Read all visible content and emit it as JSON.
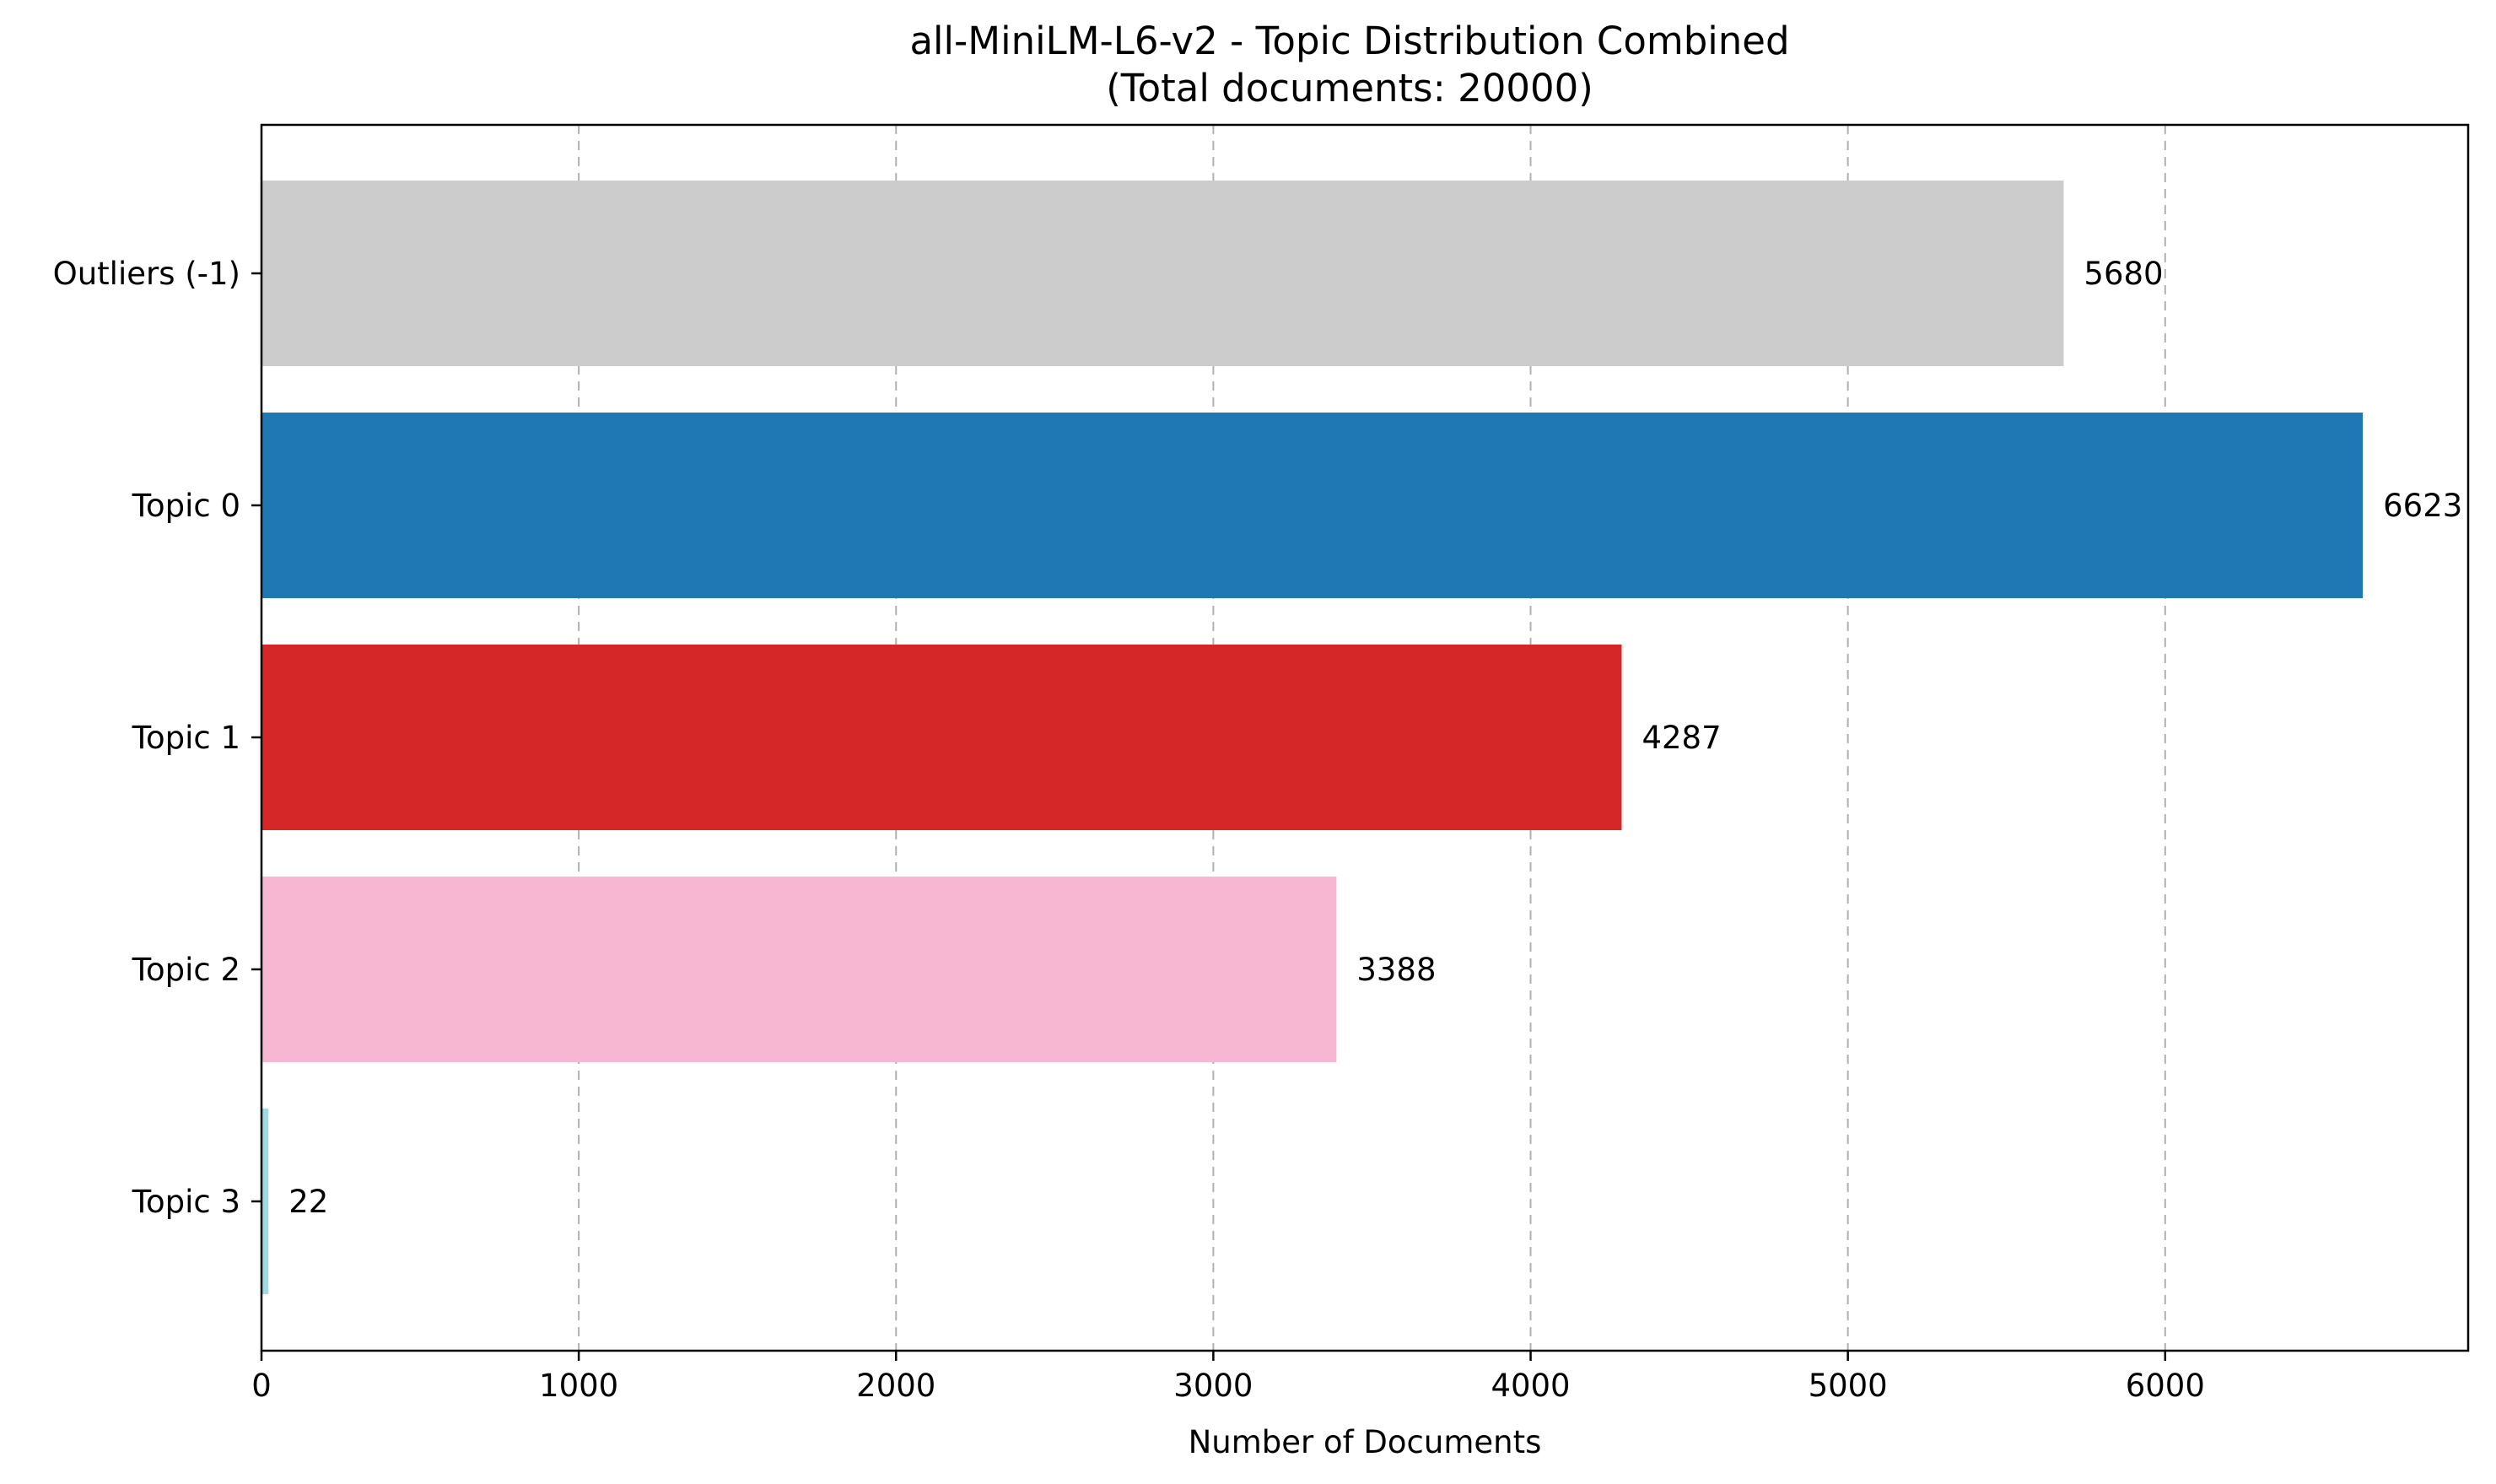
{
  "chart_data": {
    "type": "bar",
    "orientation": "horizontal",
    "title": "all-MiniLM-L6-v2 - Topic Distribution Combined",
    "subtitle": "(Total documents: 20000)",
    "xlabel": "Number of Documents",
    "ylabel": "",
    "categories": [
      "Outliers (-1)",
      "Topic 0",
      "Topic 1",
      "Topic 2",
      "Topic 3"
    ],
    "values": [
      5680,
      6623,
      4287,
      3388,
      22
    ],
    "data_labels": [
      "5680",
      "6623",
      "4287",
      "3388",
      "22"
    ],
    "colors": [
      "#cccccc",
      "#1f77b4",
      "#d62728",
      "#f7b6d2",
      "#9edae5"
    ],
    "xlim": [
      0,
      6955
    ],
    "x_ticks": [
      0,
      1000,
      2000,
      3000,
      4000,
      5000,
      6000
    ],
    "x_tick_labels": [
      "0",
      "1000",
      "2000",
      "3000",
      "4000",
      "5000",
      "6000"
    ],
    "grid": "x-axis dashed",
    "legend": "none"
  }
}
